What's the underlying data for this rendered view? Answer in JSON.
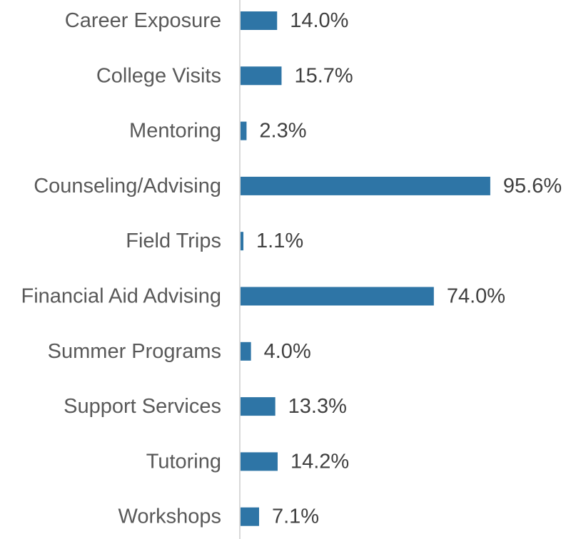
{
  "chart_data": {
    "type": "bar",
    "orientation": "horizontal",
    "categories": [
      "Career Exposure",
      "College Visits",
      "Mentoring",
      "Counseling/Advising",
      "Field Trips",
      "Financial Aid Advising",
      "Summer Programs",
      "Support Services",
      "Tutoring",
      "Workshops"
    ],
    "values": [
      14.0,
      15.7,
      2.3,
      95.6,
      1.1,
      74.0,
      4.0,
      13.3,
      14.2,
      7.1
    ],
    "value_labels": [
      "14.0%",
      "15.7%",
      "2.3%",
      "95.6%",
      "1.1%",
      "74.0%",
      "4.0%",
      "13.3%",
      "14.2%",
      "7.1%"
    ],
    "unit": "%",
    "xlim": [
      0,
      100
    ],
    "grid": false,
    "legend": "none",
    "colors": {
      "bar": "#2e75a6",
      "axis": "#d9d9d9",
      "category_text": "#595959",
      "value_text": "#404040"
    }
  }
}
